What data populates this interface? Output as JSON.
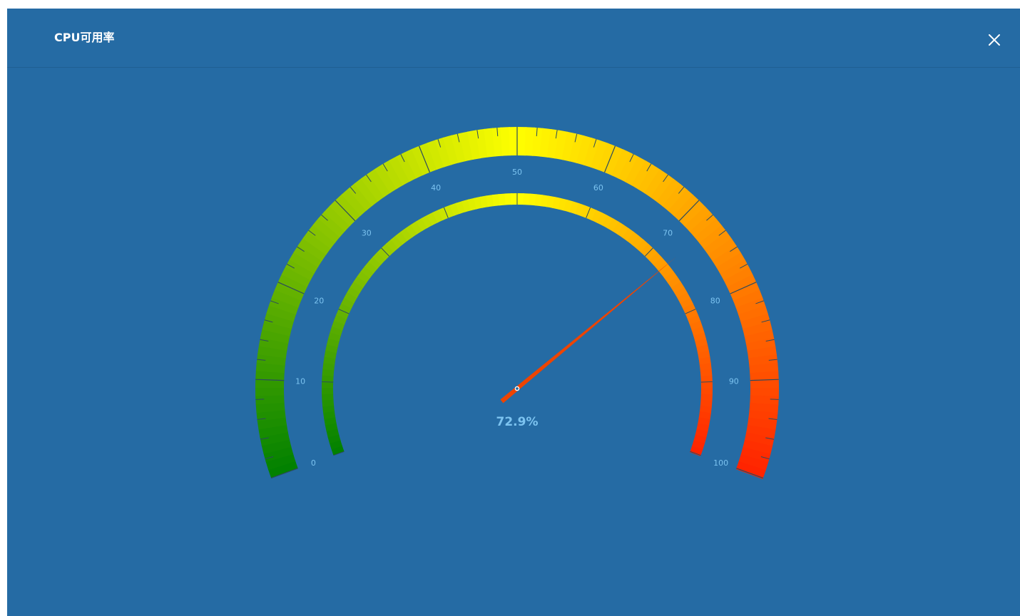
{
  "dialog": {
    "title": "CPU可用率"
  },
  "gauge": {
    "value": 72.9,
    "value_text": "72.9%",
    "min": 0,
    "max": 100,
    "tick_labels": [
      "0",
      "10",
      "20",
      "30",
      "40",
      "50",
      "60",
      "70",
      "80",
      "90",
      "100"
    ],
    "colors": {
      "low": "#008000",
      "mid": "#ffff00",
      "high": "#ff2200",
      "needle": "#ee4400",
      "label": "#7cc3f0",
      "background": "#256ba4"
    }
  },
  "icons": {
    "close": "close-icon"
  }
}
